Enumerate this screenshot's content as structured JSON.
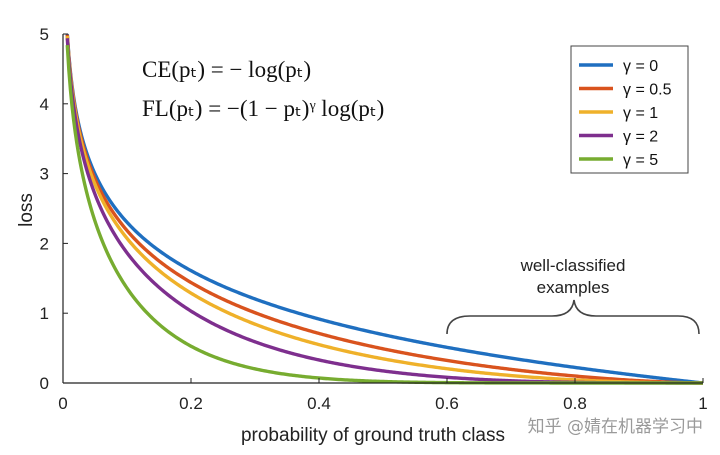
{
  "chart_data": {
    "type": "line",
    "xlabel": "probability of ground truth class",
    "ylabel": "loss",
    "xlim": [
      0,
      1
    ],
    "ylim": [
      0,
      5
    ],
    "x_ticks": [
      "0",
      "0.2",
      "0.4",
      "0.6",
      "0.8",
      "1"
    ],
    "y_ticks": [
      "0",
      "1",
      "2",
      "3",
      "4",
      "5"
    ],
    "formulas": [
      "CE(pₜ) = − log(pₜ)",
      "FL(pₜ) = −(1 − pₜ)ᵞ log(pₜ)"
    ],
    "legend_position": "top-right",
    "annotation": [
      "well-classified",
      "examples"
    ],
    "series": [
      {
        "name": "γ = 0",
        "gamma": 0,
        "color": "#1f6fc0"
      },
      {
        "name": "γ = 0.5",
        "gamma": 0.5,
        "color": "#d9531e"
      },
      {
        "name": "γ = 1",
        "gamma": 1,
        "color": "#efb12a"
      },
      {
        "name": "γ = 2",
        "gamma": 2,
        "color": "#7e2f8e"
      },
      {
        "name": "γ = 5",
        "gamma": 5,
        "color": "#77ac30"
      }
    ]
  },
  "watermark": "知乎 @婧在机器学习中"
}
